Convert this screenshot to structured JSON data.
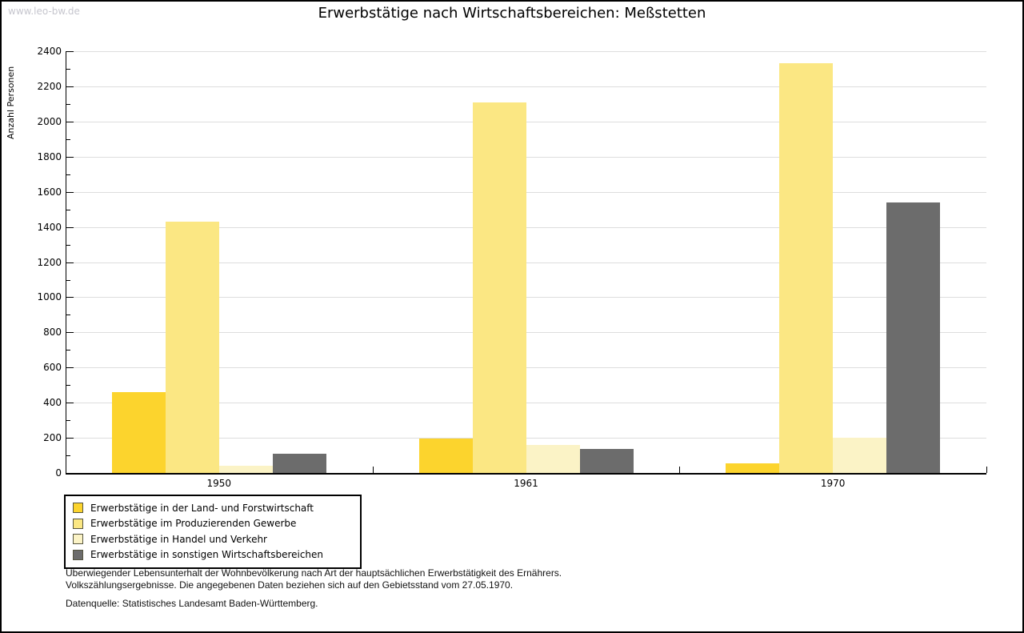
{
  "watermark": "www.leo-bw.de",
  "title": "Erwerbstätige nach Wirtschaftsbereichen: Meßstetten",
  "chart_data": {
    "type": "bar",
    "title": "Erwerbstätige nach Wirtschaftsbereichen: Meßstetten",
    "xlabel": "",
    "ylabel": "Anzahl Personen",
    "categories": [
      "1950",
      "1961",
      "1970"
    ],
    "series": [
      {
        "name": "Erwerbstätige in der Land- und Forstwirtschaft",
        "color": "#FCD42D",
        "values": [
          460,
          195,
          55
        ]
      },
      {
        "name": "Erwerbstätige im Produzierenden Gewerbe",
        "color": "#FBE783",
        "values": [
          1430,
          2110,
          2330
        ]
      },
      {
        "name": "Erwerbstätige in Handel und Verkehr",
        "color": "#FBF3C6",
        "values": [
          40,
          160,
          200
        ]
      },
      {
        "name": "Erwerbstätige in sonstigen Wirtschaftsbereichen",
        "color": "#6C6C6C",
        "values": [
          110,
          135,
          1540
        ]
      }
    ],
    "ylim": [
      0,
      2400
    ],
    "y_major_step": 200,
    "y_minor_step": 100,
    "grid": "horizontal-major",
    "legend_position": "bottom-left"
  },
  "colors": {
    "gridline": "#DDDDDD",
    "axis": "#000000",
    "watermark": "#C6C6CE"
  },
  "footer": {
    "line1": "Überwiegender Lebensunterhalt der Wohnbevölkerung nach Art der hauptsächlichen Erwerbstätigkeit des Ernährers.",
    "line2": "Volkszählungsergebnisse. Die angegebenen Daten beziehen sich auf den Gebietsstand vom 27.05.1970.",
    "source": "Datenquelle: Statistisches Landesamt Baden-Württemberg."
  }
}
